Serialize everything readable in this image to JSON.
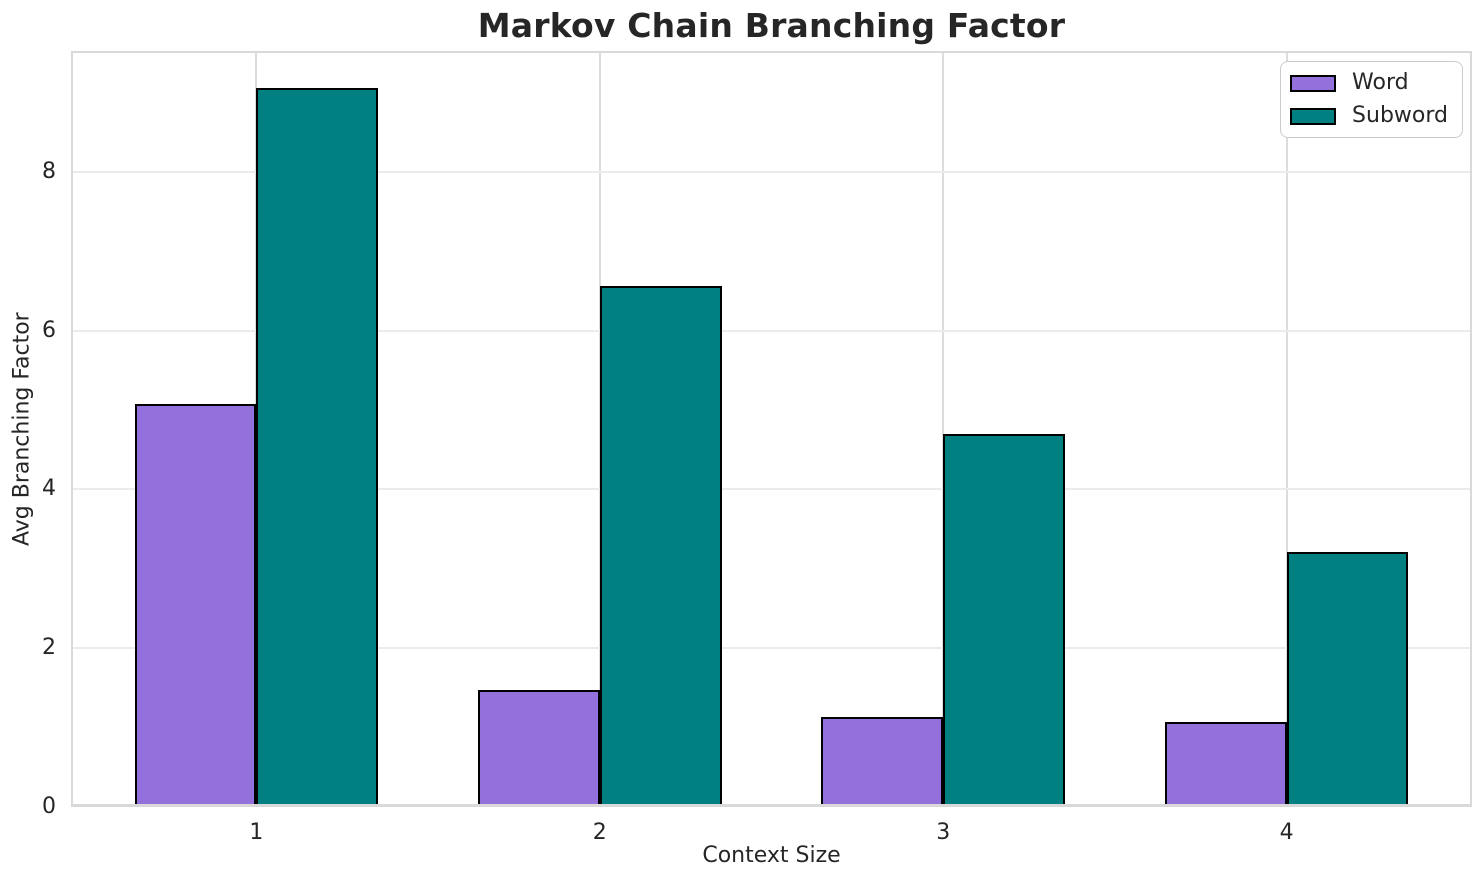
{
  "chart_data": {
    "type": "bar",
    "title": "Markov Chain Branching Factor",
    "xlabel": "Context Size",
    "ylabel": "Avg Branching Factor",
    "categories": [
      "1",
      "2",
      "3",
      "4"
    ],
    "x": [
      1,
      2,
      3,
      4
    ],
    "series": [
      {
        "name": "Word",
        "color": "#9370DB",
        "values": [
          5.07,
          1.47,
          1.13,
          1.07
        ]
      },
      {
        "name": "Subword",
        "color": "#008080",
        "values": [
          9.05,
          6.56,
          4.7,
          3.21
        ]
      }
    ],
    "bar_edge_color": "#000000",
    "bar_width_units": 0.355,
    "xlim": [
      0.46,
      4.54
    ],
    "ylim": [
      0,
      9.52
    ],
    "yticks": [
      0,
      2,
      4,
      6,
      8
    ],
    "grid": "both",
    "grid_color_h": "#ebebeb",
    "grid_color_v": "#dcdcdc",
    "spine_color": "#d9d9d9",
    "text_color": "#262626",
    "background": "#ffffff",
    "legend_position": "upper right",
    "legend_labels": [
      "Word",
      "Subword"
    ]
  }
}
